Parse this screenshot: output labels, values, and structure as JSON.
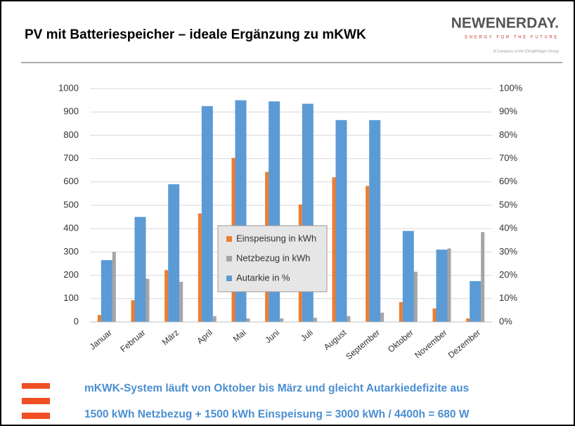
{
  "header": {
    "logo": "NEWENERDAY.",
    "tagline": "ENERGY FOR THE FUTURE",
    "company": "A Company of the ElringKlinger Group"
  },
  "chart_data": {
    "type": "bar",
    "title": "PV mit Batteriespeicher – ideale Ergänzung zu mKWK",
    "categories": [
      "Januar",
      "Februar",
      "März",
      "April",
      "Mai",
      "Juni",
      "Juli",
      "August",
      "September",
      "Oktober",
      "November",
      "Dezember"
    ],
    "series": [
      {
        "name": "Einspeisung in kWh",
        "color": "#ed7d31",
        "values": [
          30,
          93,
          222,
          465,
          703,
          643,
          503,
          620,
          583,
          85,
          58,
          15
        ]
      },
      {
        "name": "Netzbezug in kWh",
        "color": "#a5a5a5",
        "values": [
          300,
          185,
          172,
          25,
          15,
          15,
          18,
          25,
          40,
          215,
          315,
          385
        ]
      },
      {
        "name": "Autarkie in %",
        "color": "#5b9bd5",
        "axis": "y2",
        "values": [
          26.5,
          45,
          59,
          92.5,
          95,
          94.5,
          93.5,
          86.5,
          86.5,
          39,
          31,
          17.5
        ]
      }
    ],
    "ylim": [
      0,
      1000
    ],
    "yticks": [
      0,
      100,
      200,
      300,
      400,
      500,
      600,
      700,
      800,
      900,
      1000
    ],
    "y2lim": [
      0,
      100
    ],
    "y2ticks": [
      {
        "value": 0,
        "label": "0%"
      },
      {
        "value": 10,
        "label": "10%"
      },
      {
        "value": 20,
        "label": "20%"
      },
      {
        "value": 30,
        "label": "30%"
      },
      {
        "value": 40,
        "label": "40%"
      },
      {
        "value": 50,
        "label": "50%"
      },
      {
        "value": 60,
        "label": "60%"
      },
      {
        "value": 70,
        "label": "70%"
      },
      {
        "value": 80,
        "label": "80%"
      },
      {
        "value": 90,
        "label": "90%"
      },
      {
        "value": 100,
        "label": "100%"
      }
    ],
    "grid": true
  },
  "footer": {
    "lines": [
      "mKWK-System läuft von Oktober bis März und gleicht Autarkiedefizite aus",
      "1500 kWh Netzbezug + 1500 kWh Einspeisung = 3000 kWh / 4400h = 680 W"
    ]
  }
}
